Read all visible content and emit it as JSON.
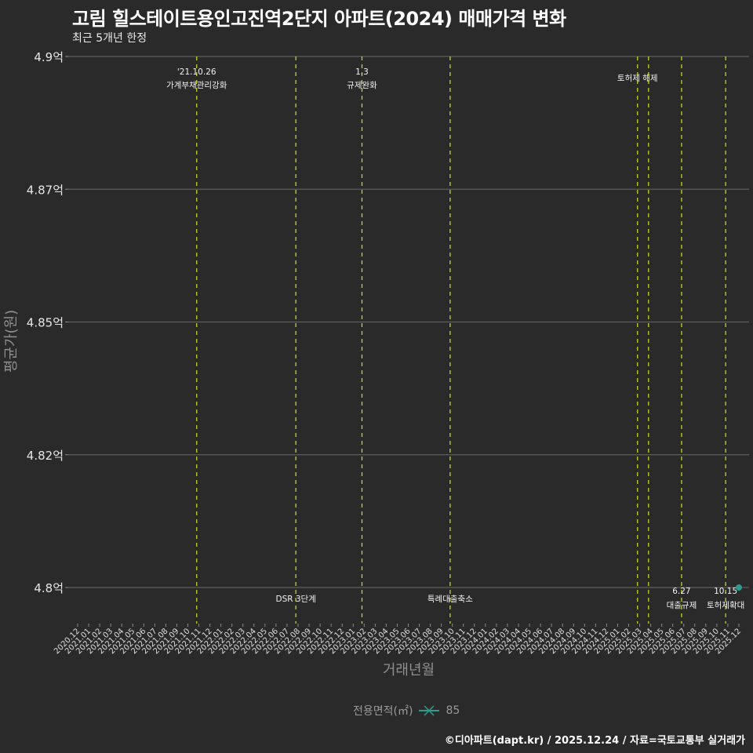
{
  "header": {
    "title": "고림 힐스테이트용인고진역2단지 아파트(2024) 매매가격 변화",
    "subtitle": "최근 5개년 한정"
  },
  "footer": {
    "credit": "©디아파트(dapt.kr) / 2025.12.24 / 자료=국토교통부 실거래가"
  },
  "legend": {
    "title": "전용면적(㎡)",
    "items": [
      {
        "label": "85",
        "color": "#2a9d8f"
      }
    ]
  },
  "colors": {
    "background": "#2a2a2a",
    "grid": "#5e5e5e",
    "event_line": "#c5d130",
    "series": "#2a9d8f"
  },
  "chart_data": {
    "type": "line",
    "title": "고림 힐스테이트용인고진역2단지 아파트(2024) 매매가격 변화",
    "subtitle": "최근 5개년 한정",
    "xlabel": "거래년월",
    "ylabel": "평균가(원)",
    "ylim": [
      4.8,
      4.9
    ],
    "y_ticks": [
      4.8,
      4.825,
      4.85,
      4.875,
      4.9
    ],
    "y_tick_labels": [
      "4.8억",
      "4.82억",
      "4.85억",
      "4.87억",
      "4.9억"
    ],
    "x_tick_labels": [
      "2020.12",
      "2021.01",
      "2021.02",
      "2021.03",
      "2021.04",
      "2021.05",
      "2021.06",
      "2021.07",
      "2021.08",
      "2021.09",
      "2021.10",
      "2021.11",
      "2021.12",
      "2022.01",
      "2022.02",
      "2022.03",
      "2022.04",
      "2022.05",
      "2022.06",
      "2022.07",
      "2022.08",
      "2022.09",
      "2022.10",
      "2022.11",
      "2022.12",
      "2023.01",
      "2023.02",
      "2023.03",
      "2023.04",
      "2023.05",
      "2023.06",
      "2023.07",
      "2023.08",
      "2023.09",
      "2023.10",
      "2023.11",
      "2023.12",
      "2024.01",
      "2024.02",
      "2024.03",
      "2024.04",
      "2024.05",
      "2024.06",
      "2024.07",
      "2024.08",
      "2024.09",
      "2024.10",
      "2024.11",
      "2024.12",
      "2025.01",
      "2025.02",
      "2025.03",
      "2025.04",
      "2025.05",
      "2025.06",
      "2025.07",
      "2025.08",
      "2025.09",
      "2025.10",
      "2025.11",
      "2025.12"
    ],
    "grid": true,
    "legend_position": "bottom",
    "series": [
      {
        "name": "85",
        "points": [
          {
            "x": "2025.12",
            "y": 4.8
          }
        ]
      }
    ],
    "events": [
      {
        "x_index": 10.8,
        "label_top": "'21.10.26",
        "label_bottom": "가계부채관리강화",
        "position": "top"
      },
      {
        "x_index": 19.8,
        "label_top": "",
        "label_bottom": "DSR 3단계",
        "position": "bottom"
      },
      {
        "x_index": 25.8,
        "label_top": "1.3",
        "label_bottom": "규제완화",
        "position": "top"
      },
      {
        "x_index": 33.8,
        "label_top": "",
        "label_bottom": "특례대출축소",
        "position": "bottom"
      },
      {
        "x_index": 50.8,
        "label_top": "",
        "label_bottom": "토허제 해제",
        "position": "top"
      },
      {
        "x_index": 51.8,
        "label_top": "",
        "label_bottom": "",
        "position": "none"
      },
      {
        "x_index": 54.8,
        "label_top": "6.27",
        "label_bottom": "대출규제",
        "position": "bottom"
      },
      {
        "x_index": 58.8,
        "label_top": "10.15",
        "label_bottom": "토허제확대",
        "position": "bottom"
      }
    ]
  }
}
